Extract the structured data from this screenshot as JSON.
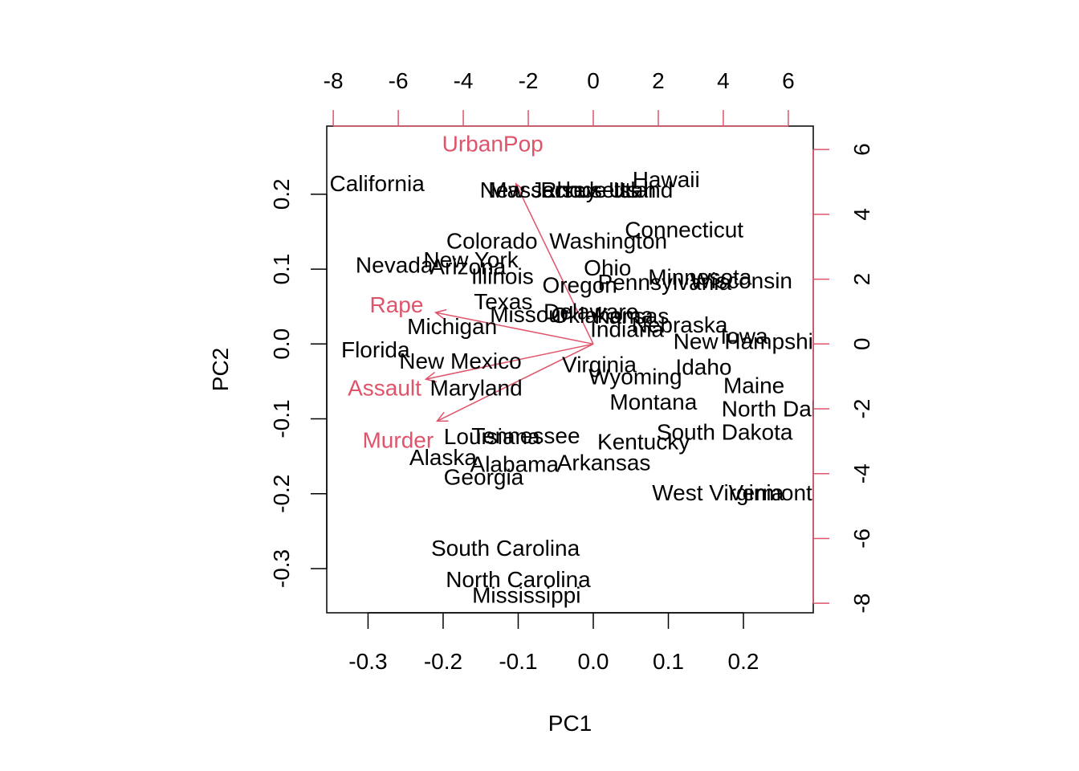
{
  "chart_data": {
    "type": "scatter",
    "subtype": "biplot",
    "xlabel": "PC1",
    "ylabel": "PC2",
    "xlim": [
      -0.355,
      0.293
    ],
    "ylim": [
      -0.359,
      0.291
    ],
    "x_ticks": [
      -0.3,
      -0.2,
      -0.1,
      0.0,
      0.1,
      0.2
    ],
    "x_tick_labels": [
      "-0.3",
      "-0.2",
      "-0.1",
      "0.0",
      "0.1",
      "0.2"
    ],
    "y_ticks": [
      -0.3,
      -0.2,
      -0.1,
      0.0,
      0.1,
      0.2
    ],
    "y_tick_labels": [
      "-0.3",
      "-0.2",
      "-0.1",
      "0.0",
      "0.1",
      "0.2"
    ],
    "top_axis": {
      "ticks": [
        -8,
        -6,
        -4,
        -2,
        0,
        2,
        4,
        6
      ],
      "tick_labels": [
        "-8",
        "-6",
        "-4",
        "-2",
        "0",
        "2",
        "4",
        "6"
      ],
      "color": "#DF536B"
    },
    "right_axis": {
      "ticks": [
        -8,
        -6,
        -4,
        -2,
        0,
        2,
        4,
        6
      ],
      "tick_labels": [
        "-8",
        "-6",
        "-4",
        "-2",
        "0",
        "2",
        "4",
        "6"
      ],
      "color": "#DF536B"
    },
    "secondary_scale": 23.1,
    "label_color": "#000000",
    "arrow_color": "#DF536B",
    "observations": [
      {
        "label": "California",
        "x": -0.288,
        "y": 0.215
      },
      {
        "label": "New Jersey",
        "x": -0.073,
        "y": 0.206
      },
      {
        "label": "Massachusetts",
        "x": -0.04,
        "y": 0.206
      },
      {
        "label": "Rhode Island",
        "x": 0.018,
        "y": 0.206
      },
      {
        "label": "Utah",
        "x": 0.052,
        "y": 0.206
      },
      {
        "label": "Hawaii",
        "x": 0.097,
        "y": 0.22
      },
      {
        "label": "Connecticut",
        "x": 0.121,
        "y": 0.153
      },
      {
        "label": "Colorado",
        "x": -0.135,
        "y": 0.138
      },
      {
        "label": "Washington",
        "x": 0.02,
        "y": 0.138
      },
      {
        "label": "New York",
        "x": -0.163,
        "y": 0.113
      },
      {
        "label": "Nevada",
        "x": -0.265,
        "y": 0.106
      },
      {
        "label": "Arizona",
        "x": -0.167,
        "y": 0.104
      },
      {
        "label": "Illinois",
        "x": -0.121,
        "y": 0.091
      },
      {
        "label": "Ohio",
        "x": 0.019,
        "y": 0.102
      },
      {
        "label": "Minnesota",
        "x": 0.142,
        "y": 0.09
      },
      {
        "label": "Wisconsin",
        "x": 0.197,
        "y": 0.085
      },
      {
        "label": "Pennsylvania",
        "x": 0.095,
        "y": 0.083
      },
      {
        "label": "Oregon",
        "x": -0.018,
        "y": 0.079
      },
      {
        "label": "Texas",
        "x": -0.12,
        "y": 0.057
      },
      {
        "label": "Delaware",
        "x": -0.003,
        "y": 0.044
      },
      {
        "label": "Oklahoma",
        "x": 0.012,
        "y": 0.039
      },
      {
        "label": "Kansas",
        "x": 0.051,
        "y": 0.038
      },
      {
        "label": "Missouri",
        "x": -0.082,
        "y": 0.04
      },
      {
        "label": "Nebraska",
        "x": 0.115,
        "y": 0.026
      },
      {
        "label": "Indiana",
        "x": 0.045,
        "y": 0.02
      },
      {
        "label": "Michigan",
        "x": -0.188,
        "y": 0.024
      },
      {
        "label": "Iowa",
        "x": 0.201,
        "y": 0.011
      },
      {
        "label": "New Hampshire",
        "x": 0.213,
        "y": 0.004
      },
      {
        "label": "Florida",
        "x": -0.29,
        "y": -0.007
      },
      {
        "label": "New Mexico",
        "x": -0.177,
        "y": -0.022
      },
      {
        "label": "Virginia",
        "x": 0.008,
        "y": -0.027
      },
      {
        "label": "Idaho",
        "x": 0.147,
        "y": -0.03
      },
      {
        "label": "Wyoming",
        "x": 0.056,
        "y": -0.043
      },
      {
        "label": "Maine",
        "x": 0.214,
        "y": -0.055
      },
      {
        "label": "Maryland",
        "x": -0.156,
        "y": -0.058
      },
      {
        "label": "North Dakota",
        "x": 0.259,
        "y": -0.086
      },
      {
        "label": "Montana",
        "x": 0.08,
        "y": -0.077
      },
      {
        "label": "South Dakota",
        "x": 0.175,
        "y": -0.117
      },
      {
        "label": "Louisiana",
        "x": -0.135,
        "y": -0.123
      },
      {
        "label": "Tennessee",
        "x": -0.09,
        "y": -0.122
      },
      {
        "label": "Kentucky",
        "x": 0.067,
        "y": -0.13
      },
      {
        "label": "Alaska",
        "x": -0.2,
        "y": -0.151
      },
      {
        "label": "Alabama",
        "x": -0.105,
        "y": -0.16
      },
      {
        "label": "Arkansas",
        "x": 0.014,
        "y": -0.158
      },
      {
        "label": "Georgia",
        "x": -0.146,
        "y": -0.177
      },
      {
        "label": "West Virginia",
        "x": 0.166,
        "y": -0.198
      },
      {
        "label": "Vermont",
        "x": 0.236,
        "y": -0.198
      },
      {
        "label": "South Carolina",
        "x": -0.117,
        "y": -0.272
      },
      {
        "label": "North Carolina",
        "x": -0.1,
        "y": -0.314
      },
      {
        "label": "Mississippi",
        "x": -0.089,
        "y": -0.335
      }
    ],
    "variables": [
      {
        "label": "UrbanPop",
        "x": -0.134,
        "y": 0.268,
        "arrow_x": -0.103,
        "arrow_y": 0.214
      },
      {
        "label": "Rape",
        "x": -0.262,
        "y": 0.053,
        "arrow_x": -0.21,
        "arrow_y": 0.042
      },
      {
        "label": "Assault",
        "x": -0.278,
        "y": -0.058,
        "arrow_x": -0.223,
        "arrow_y": -0.047
      },
      {
        "label": "Murder",
        "x": -0.26,
        "y": -0.128,
        "arrow_x": -0.208,
        "arrow_y": -0.103
      }
    ]
  }
}
